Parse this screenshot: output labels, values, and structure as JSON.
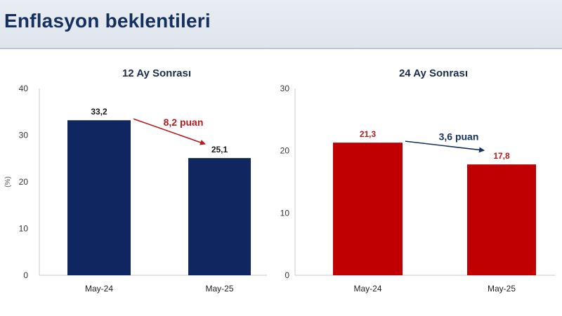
{
  "header": {
    "title": "Enflasyon beklentileri"
  },
  "chart_data": [
    {
      "type": "bar",
      "title": "12 Ay Sonrası",
      "ylabel": "(%)",
      "categories": [
        "May-24",
        "May-25"
      ],
      "values": [
        33.2,
        25.1
      ],
      "value_labels": [
        "33,2",
        "25,1"
      ],
      "ylim": [
        0,
        40
      ],
      "yticks": [
        0,
        10,
        20,
        30,
        40
      ],
      "bar_color": "#0f2660",
      "value_label_color": "#1a1a1a",
      "annotation": {
        "text": "8,2 puan",
        "color": "#b71c1c"
      },
      "grid": false
    },
    {
      "type": "bar",
      "title": "24 Ay Sonrası",
      "ylabel": "",
      "categories": [
        "May-24",
        "May-25"
      ],
      "values": [
        21.3,
        17.8
      ],
      "value_labels": [
        "21,3",
        "17,8"
      ],
      "ylim": [
        0,
        30
      ],
      "yticks": [
        0,
        10,
        20,
        30
      ],
      "bar_color": "#c00000",
      "value_label_color": "#b71c1c",
      "annotation": {
        "text": "3,6 puan",
        "color": "#14305f"
      },
      "grid": false
    }
  ]
}
